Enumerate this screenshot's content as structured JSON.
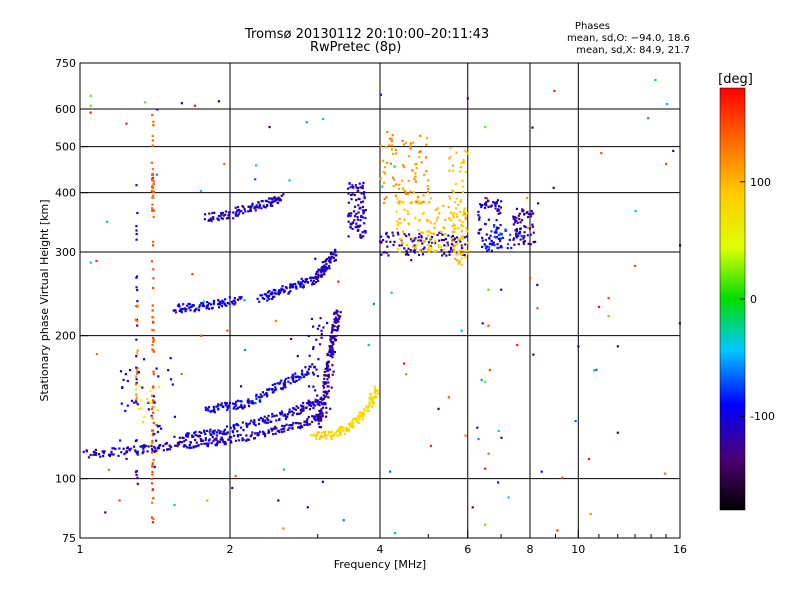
{
  "chart_data": {
    "type": "scatter",
    "title": "Tromsø 20130112 20:10:00–20:11:43",
    "subtitle": "RwPretec (8p)",
    "xlabel": "Frequency [MHz]",
    "ylabel": "Stationary phase Virtual Height [km]",
    "x_scale": "log",
    "y_scale": "log",
    "xlim": [
      1,
      16
    ],
    "ylim": [
      75,
      750
    ],
    "x_ticks": [
      1,
      2,
      4,
      6,
      8,
      10,
      16
    ],
    "y_ticks": [
      75,
      100,
      200,
      300,
      400,
      500,
      600,
      750
    ],
    "grid": true,
    "stats": {
      "heading": "Phases",
      "line_o": "mean, sd,O: −94.0, 18.6",
      "line_x": "mean, sd,X:  84.9, 21.7"
    },
    "colorbar": {
      "label": "[deg]",
      "range": [
        -180,
        180
      ],
      "ticks": [
        100,
        0,
        -100
      ]
    },
    "series": [
      {
        "mode": "trace",
        "phase": -110,
        "points": [
          [
            1.03,
            113
          ],
          [
            1.2,
            114
          ],
          [
            1.4,
            116
          ],
          [
            1.6,
            118
          ],
          [
            1.8,
            119
          ],
          [
            2.0,
            121
          ],
          [
            2.3,
            124
          ],
          [
            2.6,
            128
          ],
          [
            2.9,
            132
          ],
          [
            3.1,
            137
          ]
        ]
      },
      {
        "mode": "trace",
        "phase": -105,
        "points": [
          [
            1.6,
            122
          ],
          [
            1.8,
            124
          ],
          [
            2.0,
            127
          ],
          [
            2.3,
            132
          ],
          [
            2.6,
            137
          ],
          [
            2.85,
            142
          ],
          [
            3.05,
            148
          ]
        ]
      },
      {
        "mode": "trace",
        "phase": -100,
        "points": [
          [
            1.8,
            140
          ],
          [
            2.0,
            142
          ],
          [
            2.2,
            145
          ],
          [
            2.45,
            155
          ],
          [
            2.7,
            163
          ],
          [
            2.95,
            170
          ]
        ]
      },
      {
        "mode": "trace",
        "phase": -120,
        "points": [
          [
            3.0,
            130
          ],
          [
            3.1,
            150
          ],
          [
            3.15,
            170
          ],
          [
            3.2,
            190
          ],
          [
            3.25,
            210
          ],
          [
            3.3,
            225
          ]
        ]
      },
      {
        "mode": "trace",
        "phase": 80,
        "points": [
          [
            2.95,
            123
          ],
          [
            3.2,
            124
          ],
          [
            3.4,
            127
          ],
          [
            3.6,
            133
          ],
          [
            3.8,
            142
          ],
          [
            3.95,
            155
          ]
        ]
      },
      {
        "mode": "trace",
        "phase": -100,
        "points": [
          [
            1.55,
            228
          ],
          [
            1.7,
            230
          ],
          [
            1.9,
            234
          ],
          [
            2.1,
            238
          ]
        ]
      },
      {
        "mode": "trace",
        "phase": -100,
        "points": [
          [
            2.3,
            240
          ],
          [
            2.5,
            247
          ],
          [
            2.7,
            254
          ],
          [
            2.9,
            262
          ]
        ]
      },
      {
        "mode": "trace",
        "phase": -110,
        "points": [
          [
            2.95,
            260
          ],
          [
            3.05,
            272
          ],
          [
            3.15,
            285
          ],
          [
            3.25,
            300
          ]
        ]
      },
      {
        "mode": "trace",
        "phase": -110,
        "points": [
          [
            1.8,
            355
          ],
          [
            2.0,
            360
          ],
          [
            2.2,
            372
          ],
          [
            2.4,
            380
          ],
          [
            2.55,
            390
          ]
        ]
      },
      {
        "mode": "cluster",
        "phase": -110,
        "x": [
          3.45,
          3.75
        ],
        "y": [
          320,
          420
        ],
        "n": 90
      },
      {
        "mode": "cluster",
        "phase": -115,
        "x": [
          4.0,
          6.0
        ],
        "y": [
          295,
          330
        ],
        "n": 110
      },
      {
        "mode": "cluster",
        "phase": 90,
        "x": [
          4.3,
          6.0
        ],
        "y": [
          300,
          390
        ],
        "n": 140
      },
      {
        "mode": "cluster",
        "phase": 115,
        "x": [
          4.0,
          5.0
        ],
        "y": [
          380,
          540
        ],
        "n": 80
      },
      {
        "mode": "cluster",
        "phase": 95,
        "x": [
          5.5,
          6.0
        ],
        "y": [
          280,
          500
        ],
        "n": 60
      },
      {
        "mode": "cluster",
        "phase": -110,
        "x": [
          6.3,
          7.0
        ],
        "y": [
          300,
          390
        ],
        "n": 70
      },
      {
        "mode": "cluster",
        "phase": -120,
        "x": [
          7.4,
          8.2
        ],
        "y": [
          310,
          370
        ],
        "n": 60
      },
      {
        "mode": "cluster",
        "phase": -80,
        "x": [
          6.5,
          7.8
        ],
        "y": [
          305,
          340
        ],
        "n": 40
      },
      {
        "mode": "vline",
        "phase": 140,
        "x": 1.4,
        "y": [
          80,
          600
        ],
        "n": 90
      },
      {
        "mode": "vline",
        "phase": -110,
        "x": 1.3,
        "y": [
          95,
          450
        ],
        "n": 30
      },
      {
        "mode": "vline",
        "phase": 120,
        "x": 1.3,
        "y": [
          130,
          240
        ],
        "n": 15
      },
      {
        "mode": "cluster",
        "phase": -100,
        "x": [
          1.2,
          1.55
        ],
        "y": [
          105,
          180
        ],
        "n": 45
      },
      {
        "mode": "cluster",
        "phase": 60,
        "x": [
          1.25,
          1.45
        ],
        "y": [
          110,
          160
        ],
        "n": 20
      },
      {
        "mode": "cluster",
        "phase": -110,
        "x": [
          2.85,
          3.25
        ],
        "y": [
          140,
          230
        ],
        "n": 50
      },
      {
        "mode": "scatter",
        "phase": -40,
        "x": [
          1.0,
          16.0
        ],
        "y": [
          75,
          700
        ],
        "n": 35
      },
      {
        "mode": "scatter",
        "phase": 140,
        "x": [
          1.0,
          16.0
        ],
        "y": [
          75,
          700
        ],
        "n": 30
      },
      {
        "mode": "scatter",
        "phase": -120,
        "x": [
          1.0,
          16.0
        ],
        "y": [
          75,
          700
        ],
        "n": 30
      },
      {
        "mode": "points",
        "phase": 20,
        "points": [
          [
            1.05,
            640
          ],
          [
            1.35,
            620
          ],
          [
            1.05,
            610
          ],
          [
            6.5,
            550
          ],
          [
            6.5,
            80
          ],
          [
            1.8,
            90
          ],
          [
            6.5,
            160
          ],
          [
            6.6,
            250
          ],
          [
            11.5,
            220
          ]
        ]
      },
      {
        "mode": "points",
        "phase": 170,
        "points": [
          [
            1.05,
            590
          ],
          [
            1.4,
            430
          ],
          [
            1.4,
            95
          ],
          [
            1.4,
            81
          ],
          [
            10.5,
            110
          ],
          [
            11.0,
            230
          ],
          [
            6.5,
            105
          ],
          [
            3.3,
            260
          ],
          [
            1.7,
            610
          ]
        ]
      },
      {
        "mode": "points",
        "phase": -140,
        "points": [
          [
            10.0,
            190
          ],
          [
            12.0,
            190
          ],
          [
            12.0,
            125
          ],
          [
            15.5,
            490
          ],
          [
            16.0,
            310
          ],
          [
            2.5,
            90
          ],
          [
            2.4,
            550
          ],
          [
            8.3,
            380
          ],
          [
            7.0,
            250
          ]
        ]
      },
      {
        "mode": "points",
        "phase": 150,
        "points": [
          [
            1.2,
            90
          ],
          [
            15.0,
            460
          ],
          [
            11.5,
            240
          ],
          [
            8.0,
            265
          ],
          [
            1.75,
            200
          ],
          [
            6.6,
            210
          ]
        ]
      }
    ]
  }
}
